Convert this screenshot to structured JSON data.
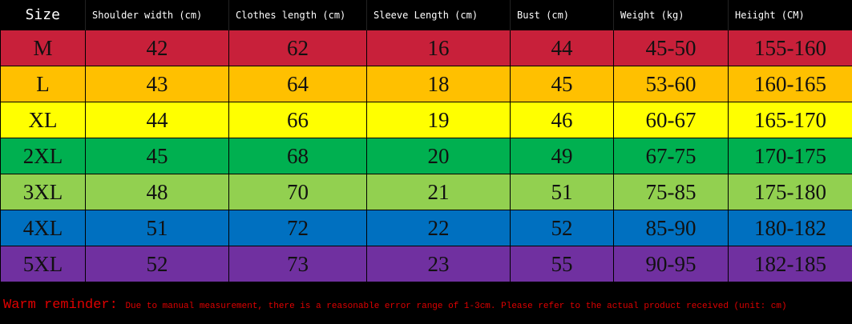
{
  "headers": [
    "Size",
    "Shoulder width (cm)",
    "Clothes length (cm)",
    "Sleeve Length (cm)",
    "Bust (cm)",
    "Weight (kg)",
    "Heiight (CM)"
  ],
  "rows": [
    {
      "color": "#c8203a",
      "cells": [
        "M",
        "42",
        "62",
        "16",
        "44",
        "45-50",
        "155-160"
      ]
    },
    {
      "color": "#ffc000",
      "cells": [
        "L",
        "43",
        "64",
        "18",
        "45",
        "53-60",
        "160-165"
      ]
    },
    {
      "color": "#ffff00",
      "cells": [
        "XL",
        "44",
        "66",
        "19",
        "46",
        "60-67",
        "165-170"
      ]
    },
    {
      "color": "#00b050",
      "cells": [
        "2XL",
        "45",
        "68",
        "20",
        "49",
        "67-75",
        "170-175"
      ]
    },
    {
      "color": "#92d050",
      "cells": [
        "3XL",
        "48",
        "70",
        "21",
        "51",
        "75-85",
        "175-180"
      ]
    },
    {
      "color": "#0070c0",
      "cells": [
        "4XL",
        "51",
        "72",
        "22",
        "52",
        "85-90",
        "180-182"
      ]
    },
    {
      "color": "#7030a0",
      "cells": [
        "5XL",
        "52",
        "73",
        "23",
        "55",
        "90-95",
        "182-185"
      ]
    }
  ],
  "reminder": {
    "lead": "Warm reminder:",
    "text": "Due to manual measurement, there is a reasonable error range of 1-3cm. Please refer to the actual product received (unit: cm)"
  }
}
